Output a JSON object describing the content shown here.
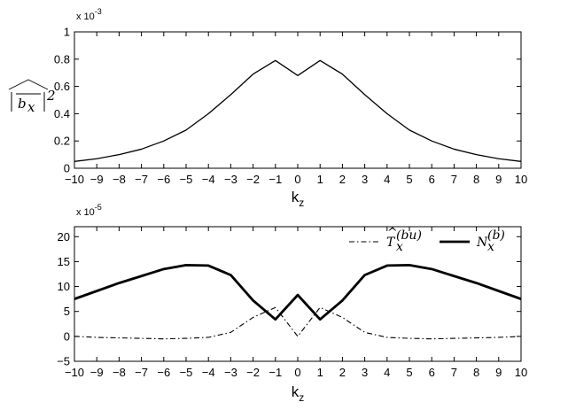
{
  "chart_data": [
    {
      "type": "line",
      "x": [
        -10,
        -9,
        -8,
        -7,
        -6,
        -5,
        -4,
        -3,
        -2,
        -1,
        0,
        1,
        2,
        3,
        4,
        5,
        6,
        7,
        8,
        9,
        10
      ],
      "series": [
        {
          "values": [
            0.05,
            0.07,
            0.1,
            0.14,
            0.2,
            0.28,
            0.4,
            0.54,
            0.69,
            0.79,
            0.68,
            0.79,
            0.69,
            0.54,
            0.4,
            0.28,
            0.2,
            0.14,
            0.1,
            0.07,
            0.05
          ],
          "color": "#000000",
          "style": "solid",
          "width": 1.3
        }
      ],
      "xlabel": "k",
      "xlabel_sub": "z",
      "ylabel": "|b_x|^2",
      "y_exponent_text": "x 10",
      "y_exponent_power": "-3",
      "xlim": [
        -10,
        10
      ],
      "ylim": [
        0,
        1
      ],
      "xticks": [
        "-10",
        "-9",
        "-8",
        "-7",
        "-6",
        "-5",
        "-4",
        "-3",
        "-2",
        "-1",
        "0",
        "1",
        "2",
        "3",
        "4",
        "5",
        "6",
        "7",
        "8",
        "9",
        "10"
      ],
      "yticks": [
        "0",
        "0.2",
        "0.4",
        "0.6",
        "0.8",
        "1"
      ],
      "ytick_values": [
        0,
        0.2,
        0.4,
        0.6,
        0.8,
        1
      ],
      "grid": false,
      "legend": false
    },
    {
      "type": "line",
      "x": [
        -10,
        -9,
        -8,
        -7,
        -6,
        -5,
        -4,
        -3,
        -2,
        -1,
        0,
        1,
        2,
        3,
        4,
        5,
        6,
        7,
        8,
        9,
        10
      ],
      "series": [
        {
          "name": "T_x^(bu)",
          "values": [
            0.0,
            -0.2,
            -0.3,
            -0.4,
            -0.5,
            -0.4,
            -0.2,
            0.8,
            3.8,
            5.8,
            0.0,
            5.8,
            3.8,
            0.8,
            -0.2,
            -0.4,
            -0.5,
            -0.4,
            -0.3,
            -0.2,
            0.0
          ],
          "color": "#000000",
          "style": "dashdot",
          "width": 1.1
        },
        {
          "name": "N_x^(b)",
          "values": [
            7.5,
            9.1,
            10.7,
            12.1,
            13.5,
            14.3,
            14.2,
            12.3,
            7.2,
            3.4,
            8.3,
            3.4,
            7.2,
            12.3,
            14.2,
            14.3,
            13.5,
            12.1,
            10.7,
            9.1,
            7.5
          ],
          "color": "#000000",
          "style": "solid",
          "width": 2.8
        }
      ],
      "xlabel": "k",
      "xlabel_sub": "z",
      "y_exponent_text": "x 10",
      "y_exponent_power": "-5",
      "xlim": [
        -10,
        10
      ],
      "ylim": [
        -5,
        22
      ],
      "xticks": [
        "-10",
        "-9",
        "-8",
        "-7",
        "-6",
        "-5",
        "-4",
        "-3",
        "-2",
        "-1",
        "0",
        "1",
        "2",
        "3",
        "4",
        "5",
        "6",
        "7",
        "8",
        "9",
        "10"
      ],
      "yticks": [
        "-5",
        "0",
        "5",
        "10",
        "15",
        "20"
      ],
      "ytick_values": [
        -5,
        0,
        5,
        10,
        15,
        20
      ],
      "grid": false,
      "legend": true,
      "legend_position": "top-right"
    }
  ]
}
